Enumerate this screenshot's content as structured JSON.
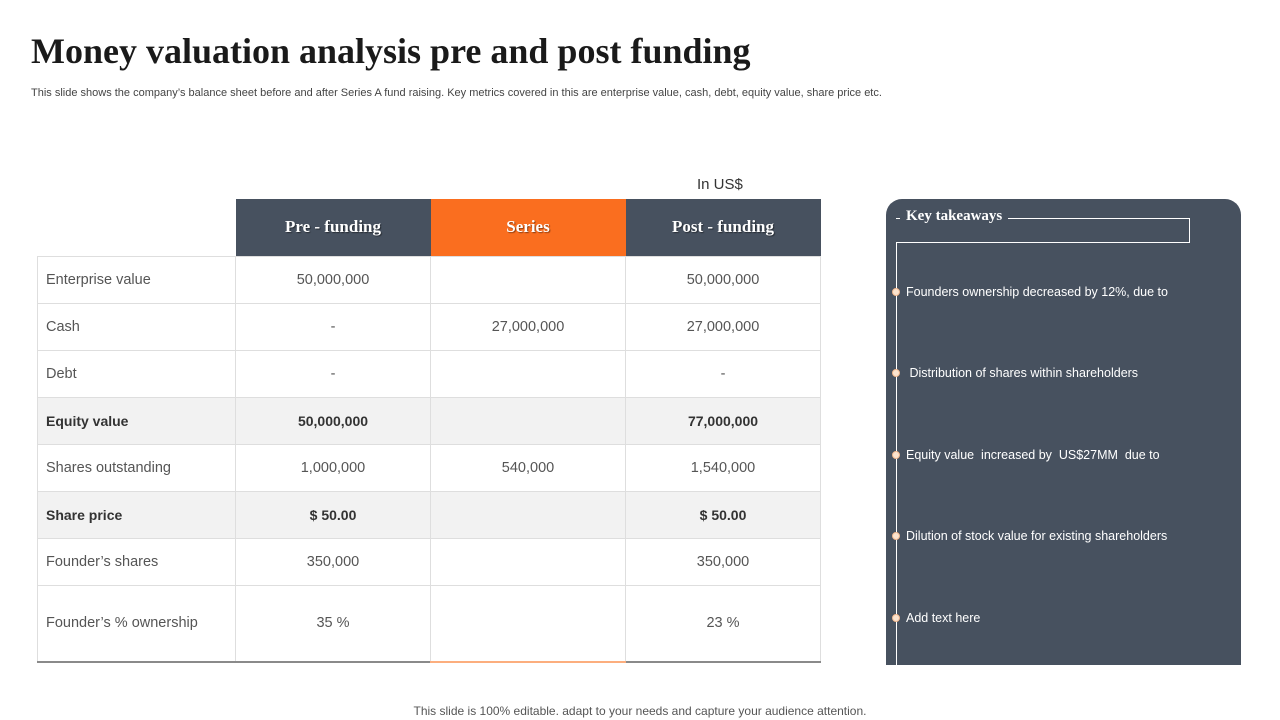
{
  "slide": {
    "title": "Money valuation analysis pre and post funding",
    "subtitle": "This slide shows the company’s balance sheet before and after Series A fund raising. Key metrics covered in this are enterprise value, cash, debt, equity value, share price etc.",
    "unit_label": "In US$",
    "footer": "This slide is 100% editable. adapt to your needs and capture your audience attention."
  },
  "table": {
    "headers": [
      "",
      "Pre - funding",
      "Series",
      "Post - funding"
    ],
    "rows": [
      {
        "label": "Enterprise value",
        "pre": "50,000,000",
        "series": "",
        "post": "50,000,000"
      },
      {
        "label": "Cash",
        "pre": "-",
        "series": "27,000,000",
        "post": "27,000,000"
      },
      {
        "label": "Debt",
        "pre": "-",
        "series": "",
        "post": "-"
      },
      {
        "label": "Equity value",
        "pre": "50,000,000",
        "series": "",
        "post": "77,000,000"
      },
      {
        "label": "Shares outstanding",
        "pre": "1,000,000",
        "series": "540,000",
        "post": "1,540,000"
      },
      {
        "label": "Share price",
        "pre": "$ 50.00",
        "series": "",
        "post": "$ 50.00"
      },
      {
        "label": "Founder’s shares",
        "pre": "350,000",
        "series": "",
        "post": "350,000"
      },
      {
        "label": "Founder’s % ownership",
        "pre": "35 %",
        "series": "",
        "post": "23 %"
      }
    ]
  },
  "key_takeaways": {
    "title": "Key takeaways",
    "items": [
      "Founders ownership decreased by 12%, due to",
      " Distribution of shares within shareholders",
      "Equity value  increased by  US$27MM  due to",
      "Dilution of stock value for existing shareholders",
      "Add text here"
    ]
  },
  "colors": {
    "header_dark": "#47515f",
    "header_accent": "#fa6e1f",
    "panel_bg": "#47515f",
    "highlight_row": "#f2f2f2"
  }
}
